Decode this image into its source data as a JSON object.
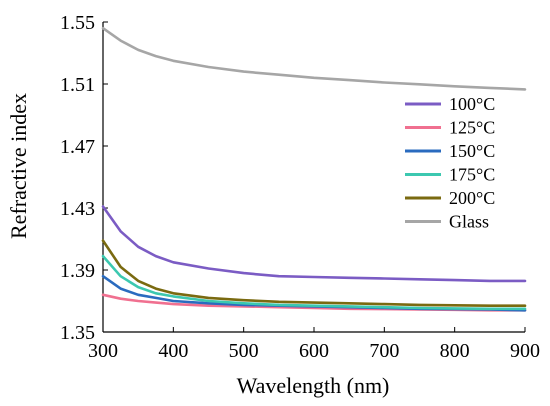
{
  "chart_data": {
    "type": "line",
    "xlabel": "Wavelength (nm)",
    "ylabel": "Refractive index",
    "xlim": [
      300,
      900
    ],
    "ylim": [
      1.35,
      1.55
    ],
    "xticks": [
      "300",
      "400",
      "500",
      "600",
      "700",
      "800",
      "900"
    ],
    "yticks": [
      "1.35",
      "1.39",
      "1.43",
      "1.47",
      "1.51",
      "1.55"
    ],
    "grid": false,
    "legend_position": "right",
    "x": [
      300,
      325,
      350,
      375,
      400,
      450,
      500,
      550,
      600,
      650,
      700,
      750,
      800,
      850,
      900
    ],
    "series": [
      {
        "name": "100°C",
        "color": "#7b5cc4",
        "values": [
          1.431,
          1.415,
          1.405,
          1.399,
          1.395,
          1.391,
          1.388,
          1.386,
          1.3855,
          1.385,
          1.3845,
          1.384,
          1.3835,
          1.383,
          1.383
        ]
      },
      {
        "name": "125°C",
        "color": "#f07090",
        "values": [
          1.374,
          1.3715,
          1.37,
          1.369,
          1.368,
          1.367,
          1.3665,
          1.366,
          1.3655,
          1.365,
          1.3648,
          1.3645,
          1.3643,
          1.364,
          1.364
        ]
      },
      {
        "name": "150°C",
        "color": "#2a6bbf",
        "values": [
          1.386,
          1.378,
          1.374,
          1.372,
          1.37,
          1.3685,
          1.3675,
          1.367,
          1.3665,
          1.366,
          1.3655,
          1.365,
          1.3648,
          1.3645,
          1.364
        ]
      },
      {
        "name": "175°C",
        "color": "#3cc8b0",
        "values": [
          1.399,
          1.386,
          1.379,
          1.375,
          1.373,
          1.37,
          1.3685,
          1.3675,
          1.367,
          1.3665,
          1.366,
          1.3655,
          1.3652,
          1.365,
          1.365
        ]
      },
      {
        "name": "200°C",
        "color": "#7a6a10",
        "values": [
          1.409,
          1.392,
          1.383,
          1.378,
          1.375,
          1.372,
          1.3705,
          1.3695,
          1.369,
          1.3685,
          1.368,
          1.3675,
          1.3672,
          1.367,
          1.367
        ]
      },
      {
        "name": "Glass",
        "color": "#a6a6a6",
        "values": [
          1.546,
          1.538,
          1.532,
          1.528,
          1.525,
          1.521,
          1.518,
          1.516,
          1.514,
          1.5125,
          1.511,
          1.5098,
          1.5085,
          1.5075,
          1.5065
        ]
      }
    ]
  }
}
